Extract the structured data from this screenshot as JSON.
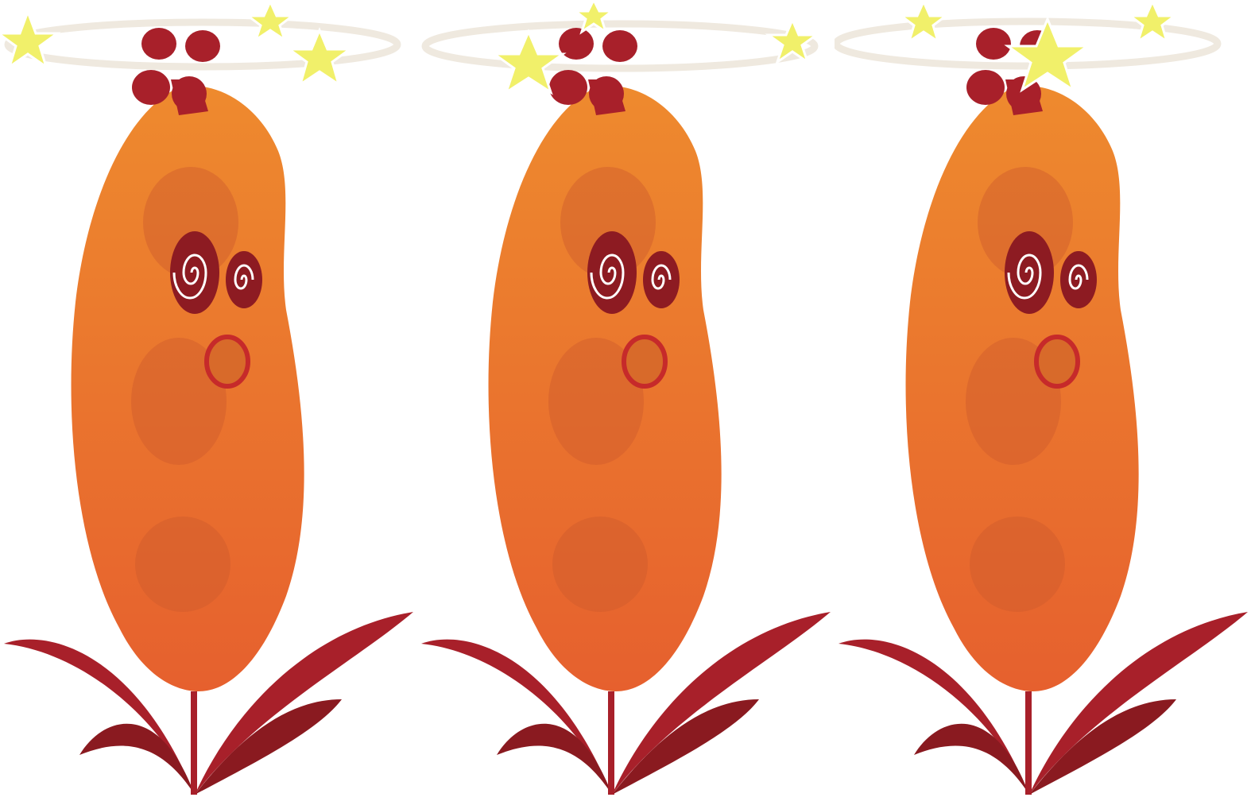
{
  "sprite_sheet": {
    "character": "dizzy-sweet-potato",
    "state": "dizzy",
    "frame_count": 3,
    "frames": [
      {
        "label": "frame-1"
      },
      {
        "label": "frame-2"
      },
      {
        "label": "frame-3"
      }
    ]
  },
  "colors": {
    "background": "#ffffff",
    "body_light": "#ee8a2e",
    "body_dark": "#e6602e",
    "body_shade": "#cf5a2c",
    "leaf": "#a8202a",
    "leaf_dark": "#8a1a20",
    "top_knot": "#a8202a",
    "eye_bg": "#8d1b22",
    "eye_spiral": "#ffffff",
    "mouth": "#c62a2a",
    "halo": "#efe9df",
    "star": "#f1f06a"
  }
}
